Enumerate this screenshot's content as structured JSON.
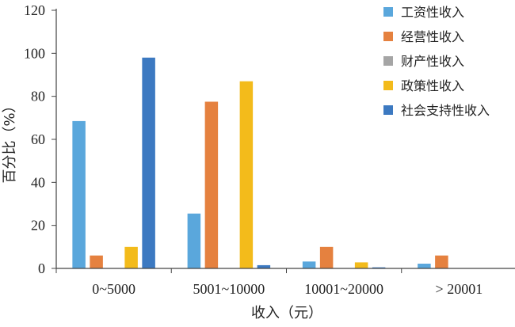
{
  "chart_data": {
    "type": "bar",
    "categories": [
      "0~5000",
      "5001~10000",
      "10001~20000",
      "> 20001"
    ],
    "series": [
      {
        "name": "工资性收入",
        "color": "#5aa7dc",
        "values": [
          68.5,
          25.5,
          3.2,
          2.2
        ]
      },
      {
        "name": "经营性收入",
        "color": "#e5813f",
        "values": [
          6.0,
          77.5,
          10.0,
          6.0
        ]
      },
      {
        "name": "财产性收入",
        "color": "#a5a5a5",
        "values": [
          0,
          0,
          0,
          0
        ]
      },
      {
        "name": "政策性收入",
        "color": "#f3bb1b",
        "values": [
          10.0,
          87.0,
          2.8,
          0
        ]
      },
      {
        "name": "社会支持性收入",
        "color": "#3c79c1",
        "values": [
          98.0,
          1.5,
          0.5,
          0
        ]
      }
    ],
    "xlabel": "收入（元）",
    "ylabel": "百分比（%）",
    "ylim": [
      0,
      120
    ],
    "yticks": [
      0,
      20,
      40,
      60,
      80,
      100,
      120
    ],
    "grid": false,
    "legend_position": "top-right"
  }
}
